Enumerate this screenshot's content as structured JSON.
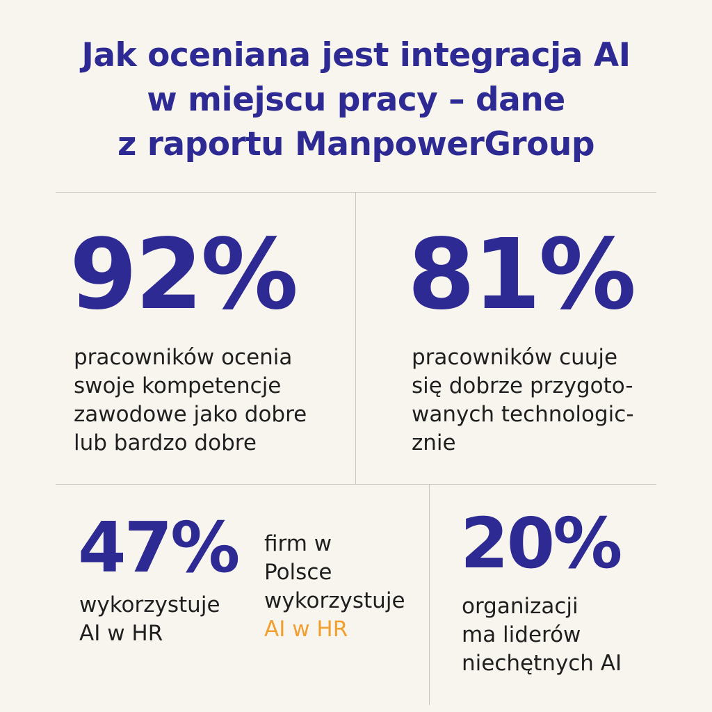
{
  "title": {
    "line1": "Jak oceniana jest integracja AI",
    "line2": "w miejscu pracy – dane",
    "line3": "z raportu ManpowerGroup"
  },
  "stats": {
    "stat1": {
      "value": "92%",
      "lines": [
        "pracowników ocenia",
        "swoje kompetencje",
        "zawodowe jako dobre",
        "lub bardzo dobre"
      ]
    },
    "stat2": {
      "value": "81%",
      "lines": [
        "pracowników cuuje",
        "się dobrze przygoto-",
        "wanych technologic-",
        "znie"
      ]
    },
    "stat3": {
      "value": "47%",
      "lines": [
        "wykorzystuje",
        "AI w HR"
      ],
      "side_lines": [
        "firm w",
        "Polsce",
        "wykorzystuje"
      ],
      "side_accent": "AI w HR"
    },
    "stat4": {
      "value": "20%",
      "lines": [
        "organizacji",
        "ma liderów",
        "niechętnych AI"
      ]
    }
  },
  "colors": {
    "background": "#f8f5ee",
    "primary": "#2e2a93",
    "accent": "#f0a030",
    "divider": "#c9c6c0"
  }
}
